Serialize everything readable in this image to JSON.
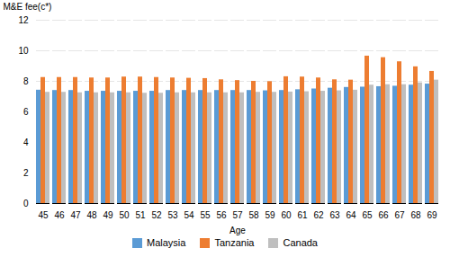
{
  "chart_data": {
    "type": "bar",
    "categories": [
      "45",
      "46",
      "47",
      "48",
      "49",
      "50",
      "51",
      "52",
      "53",
      "54",
      "55",
      "56",
      "57",
      "58",
      "59",
      "60",
      "61",
      "62",
      "63",
      "64",
      "65",
      "66",
      "67",
      "68",
      "69"
    ],
    "series": [
      {
        "name": "Malaysia",
        "color": "#5B9BD5",
        "values": [
          7.42,
          7.4,
          7.4,
          7.35,
          7.35,
          7.35,
          7.35,
          7.35,
          7.4,
          7.4,
          7.4,
          7.4,
          7.4,
          7.4,
          7.38,
          7.4,
          7.45,
          7.5,
          7.55,
          7.6,
          7.62,
          7.65,
          7.68,
          7.75,
          7.82
        ]
      },
      {
        "name": "Tanzania",
        "color": "#ED7D31",
        "values": [
          8.25,
          8.25,
          8.25,
          8.22,
          8.22,
          8.28,
          8.28,
          8.25,
          8.22,
          8.2,
          8.18,
          8.1,
          8.05,
          8.0,
          7.98,
          8.3,
          8.28,
          8.22,
          8.1,
          8.08,
          9.65,
          9.55,
          9.28,
          8.95,
          8.65
        ]
      },
      {
        "name": "Canada",
        "color": "#BFBFBF",
        "values": [
          7.28,
          7.28,
          7.25,
          7.25,
          7.25,
          7.25,
          7.22,
          7.22,
          7.25,
          7.25,
          7.25,
          7.25,
          7.25,
          7.28,
          7.28,
          7.3,
          7.32,
          7.35,
          7.38,
          7.42,
          7.75,
          7.78,
          7.78,
          7.9,
          8.08
        ]
      }
    ],
    "xlabel": "Age",
    "ylabel": "M&E fee(c*)",
    "ylim": [
      0,
      12
    ],
    "yticks": [
      0,
      2,
      4,
      6,
      8,
      10,
      12
    ],
    "grid": true,
    "legend": "bottom"
  }
}
